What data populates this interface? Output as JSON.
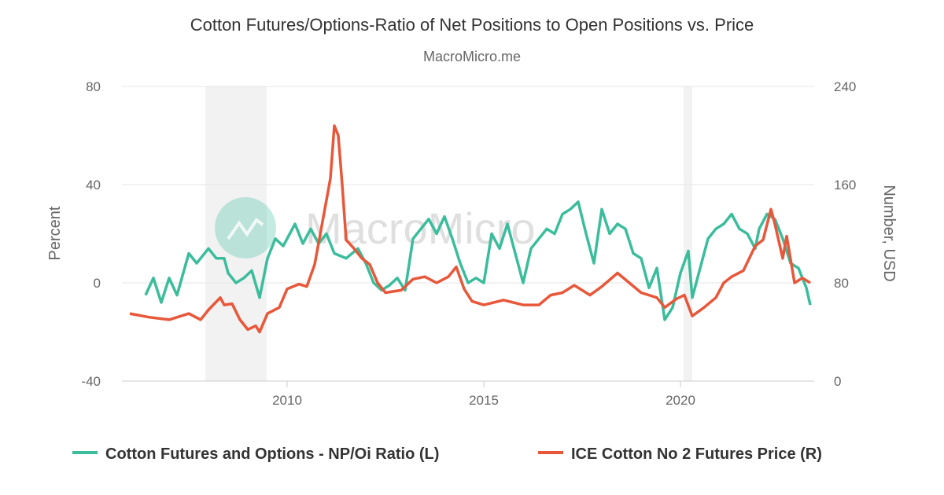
{
  "chart_data": {
    "type": "line",
    "title": "Cotton Futures/Options-Ratio of Net Positions to Open Positions vs. Price",
    "subtitle": "MacroMicro.me",
    "watermark": "MacroMicro",
    "xlim": [
      2006,
      2023.5
    ],
    "x_ticks": [
      "2010",
      "2015",
      "2020"
    ],
    "y_left": {
      "label": "Percent",
      "lim": [
        -40,
        80
      ],
      "ticks": [
        "80",
        "40",
        "0",
        "-40"
      ]
    },
    "y_right": {
      "label": "Number, USD",
      "lim": [
        0,
        240
      ],
      "ticks": [
        "240",
        "160",
        "80",
        "0"
      ]
    },
    "grid": true,
    "legend_position": "bottom",
    "recessions": [
      [
        2007.92,
        2009.48
      ],
      [
        2020.08,
        2020.3
      ]
    ],
    "colors": {
      "ratio": "#3bbd9c",
      "price": "#e8573a",
      "recession": "#f2f2f2"
    },
    "series": [
      {
        "name": "Cotton Futures and Options - NP/Oi Ratio (L)",
        "axis": "left",
        "points": [
          [
            2006.4,
            -5
          ],
          [
            2006.6,
            2
          ],
          [
            2006.8,
            -8
          ],
          [
            2007.0,
            2
          ],
          [
            2007.2,
            -5
          ],
          [
            2007.5,
            12
          ],
          [
            2007.7,
            8
          ],
          [
            2008.0,
            14
          ],
          [
            2008.2,
            10
          ],
          [
            2008.4,
            10
          ],
          [
            2008.5,
            4
          ],
          [
            2008.7,
            0
          ],
          [
            2008.9,
            2
          ],
          [
            2009.1,
            5
          ],
          [
            2009.3,
            -6
          ],
          [
            2009.5,
            10
          ],
          [
            2009.7,
            18
          ],
          [
            2009.9,
            15
          ],
          [
            2010.0,
            18
          ],
          [
            2010.2,
            24
          ],
          [
            2010.4,
            16
          ],
          [
            2010.6,
            22
          ],
          [
            2010.8,
            16
          ],
          [
            2011.0,
            20
          ],
          [
            2011.2,
            12
          ],
          [
            2011.5,
            10
          ],
          [
            2011.8,
            14
          ],
          [
            2012.0,
            8
          ],
          [
            2012.2,
            0
          ],
          [
            2012.4,
            -3
          ],
          [
            2012.6,
            -1
          ],
          [
            2012.8,
            2
          ],
          [
            2013.0,
            -3
          ],
          [
            2013.2,
            18
          ],
          [
            2013.4,
            22
          ],
          [
            2013.6,
            26
          ],
          [
            2013.8,
            20
          ],
          [
            2014.0,
            27
          ],
          [
            2014.2,
            18
          ],
          [
            2014.4,
            8
          ],
          [
            2014.6,
            0
          ],
          [
            2014.8,
            2
          ],
          [
            2015.0,
            0
          ],
          [
            2015.2,
            20
          ],
          [
            2015.4,
            14
          ],
          [
            2015.6,
            24
          ],
          [
            2015.8,
            12
          ],
          [
            2016.0,
            0
          ],
          [
            2016.2,
            14
          ],
          [
            2016.4,
            18
          ],
          [
            2016.6,
            22
          ],
          [
            2016.8,
            20
          ],
          [
            2017.0,
            28
          ],
          [
            2017.2,
            30
          ],
          [
            2017.4,
            33
          ],
          [
            2017.6,
            20
          ],
          [
            2017.8,
            8
          ],
          [
            2018.0,
            30
          ],
          [
            2018.2,
            20
          ],
          [
            2018.4,
            24
          ],
          [
            2018.6,
            22
          ],
          [
            2018.8,
            12
          ],
          [
            2019.0,
            10
          ],
          [
            2019.2,
            -2
          ],
          [
            2019.4,
            6
          ],
          [
            2019.6,
            -15
          ],
          [
            2019.8,
            -10
          ],
          [
            2020.0,
            4
          ],
          [
            2020.2,
            13
          ],
          [
            2020.3,
            -6
          ],
          [
            2020.5,
            6
          ],
          [
            2020.7,
            18
          ],
          [
            2020.9,
            22
          ],
          [
            2021.1,
            24
          ],
          [
            2021.3,
            28
          ],
          [
            2021.5,
            22
          ],
          [
            2021.7,
            20
          ],
          [
            2021.9,
            14
          ],
          [
            2022.0,
            22
          ],
          [
            2022.2,
            28
          ],
          [
            2022.4,
            26
          ],
          [
            2022.6,
            18
          ],
          [
            2022.8,
            8
          ],
          [
            2023.0,
            6
          ],
          [
            2023.2,
            -2
          ],
          [
            2023.3,
            -9
          ]
        ]
      },
      {
        "name": "ICE Cotton No 2 Futures Price (R)",
        "axis": "right",
        "points": [
          [
            2006.0,
            55
          ],
          [
            2006.5,
            52
          ],
          [
            2007.0,
            50
          ],
          [
            2007.5,
            55
          ],
          [
            2007.8,
            50
          ],
          [
            2008.0,
            58
          ],
          [
            2008.3,
            68
          ],
          [
            2008.4,
            62
          ],
          [
            2008.6,
            63
          ],
          [
            2008.8,
            50
          ],
          [
            2009.0,
            42
          ],
          [
            2009.2,
            45
          ],
          [
            2009.3,
            40
          ],
          [
            2009.5,
            55
          ],
          [
            2009.8,
            60
          ],
          [
            2010.0,
            75
          ],
          [
            2010.3,
            79
          ],
          [
            2010.5,
            77
          ],
          [
            2010.7,
            95
          ],
          [
            2010.9,
            130
          ],
          [
            2011.1,
            165
          ],
          [
            2011.2,
            208
          ],
          [
            2011.3,
            200
          ],
          [
            2011.4,
            160
          ],
          [
            2011.5,
            115
          ],
          [
            2011.7,
            108
          ],
          [
            2011.9,
            100
          ],
          [
            2012.1,
            95
          ],
          [
            2012.3,
            80
          ],
          [
            2012.5,
            72
          ],
          [
            2012.7,
            73
          ],
          [
            2012.9,
            74
          ],
          [
            2013.2,
            83
          ],
          [
            2013.5,
            85
          ],
          [
            2013.8,
            80
          ],
          [
            2014.1,
            85
          ],
          [
            2014.3,
            93
          ],
          [
            2014.5,
            75
          ],
          [
            2014.7,
            65
          ],
          [
            2015.0,
            62
          ],
          [
            2015.5,
            66
          ],
          [
            2016.0,
            62
          ],
          [
            2016.4,
            62
          ],
          [
            2016.7,
            70
          ],
          [
            2017.0,
            72
          ],
          [
            2017.3,
            78
          ],
          [
            2017.7,
            70
          ],
          [
            2018.0,
            77
          ],
          [
            2018.4,
            88
          ],
          [
            2018.7,
            80
          ],
          [
            2019.0,
            72
          ],
          [
            2019.4,
            68
          ],
          [
            2019.6,
            60
          ],
          [
            2019.9,
            67
          ],
          [
            2020.1,
            70
          ],
          [
            2020.3,
            53
          ],
          [
            2020.6,
            60
          ],
          [
            2020.9,
            68
          ],
          [
            2021.1,
            80
          ],
          [
            2021.3,
            85
          ],
          [
            2021.6,
            90
          ],
          [
            2021.9,
            110
          ],
          [
            2022.1,
            115
          ],
          [
            2022.3,
            140
          ],
          [
            2022.4,
            128
          ],
          [
            2022.6,
            100
          ],
          [
            2022.7,
            118
          ],
          [
            2022.9,
            80
          ],
          [
            2023.1,
            84
          ],
          [
            2023.3,
            80
          ]
        ]
      }
    ]
  }
}
